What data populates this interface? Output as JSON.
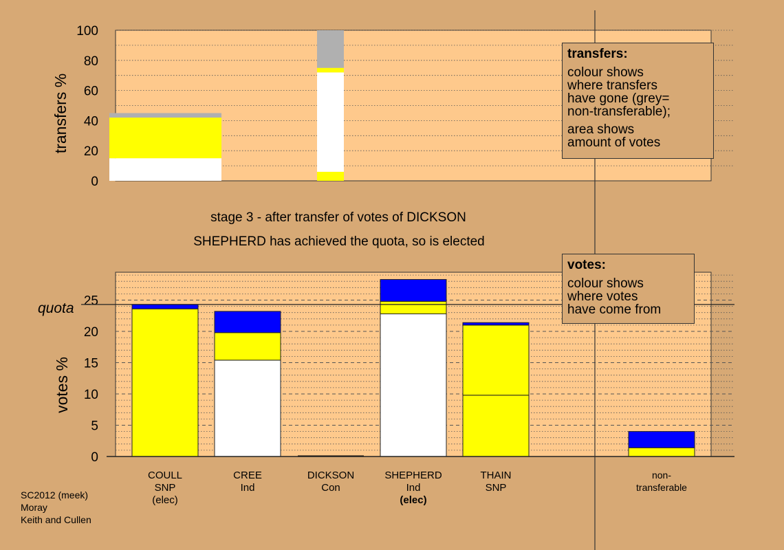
{
  "colors": {
    "background": "#d7a975",
    "plot_area": "#fec98c",
    "own_votes": "#ffffff",
    "snp": "#ffff00",
    "con": "#0000ff",
    "non_transferable": "#b0b0b0"
  },
  "captions": {
    "stage": "stage 3 - after transfer of votes of DICKSON",
    "result": "SHEPHERD has achieved the quota, so is elected"
  },
  "legend_transfers": {
    "title": "transfers:",
    "lines1": [
      "colour shows",
      "where transfers",
      "have gone (grey=",
      "non-transferable);"
    ],
    "lines2": [
      "area shows",
      "amount of votes"
    ]
  },
  "legend_votes": {
    "title": "votes:",
    "lines": [
      "colour shows",
      "where votes",
      "have come from"
    ]
  },
  "footer": [
    "SC2012 (meek)",
    "Moray",
    "Keith and Cullen"
  ],
  "chart_data": [
    {
      "type": "bar",
      "stacked": true,
      "title": "",
      "ylabel": "transfers %",
      "ylim": [
        0,
        100
      ],
      "yticks": [
        0,
        20,
        40,
        60,
        80,
        100
      ],
      "grid": "dotted",
      "categories": [
        "COULL",
        "DICKSON"
      ],
      "bars": [
        {
          "category": "COULL",
          "segments": [
            {
              "color": "#ffffff",
              "value": 15
            },
            {
              "color": "#ffff00",
              "value": 27
            },
            {
              "color": "#b0b0b0",
              "value": 3
            }
          ]
        },
        {
          "category": "DICKSON",
          "segments": [
            {
              "color": "#ffff00",
              "value": 6
            },
            {
              "color": "#ffffff",
              "value": 66
            },
            {
              "color": "#ffff00",
              "value": 3
            },
            {
              "color": "#b0b0b0",
              "value": 25
            }
          ]
        }
      ]
    },
    {
      "type": "bar",
      "stacked": true,
      "title": "",
      "ylabel": "votes %",
      "ylim": [
        0,
        30
      ],
      "yticks": [
        0,
        5,
        10,
        15,
        20,
        25
      ],
      "quota_label": "quota",
      "quota": 24.3,
      "grid": "dotted minor, dashed major",
      "candidates": [
        {
          "name": "COULL",
          "party": "SNP",
          "status": "(elec)",
          "segments": [
            {
              "color": "#ffff00",
              "value": 23.6
            },
            {
              "color": "#0000ff",
              "value": 0.7
            }
          ]
        },
        {
          "name": "CREE",
          "party": "Ind",
          "status": "",
          "segments": [
            {
              "color": "#ffffff",
              "value": 15.4
            },
            {
              "color": "#ffff00",
              "value": 4.4
            },
            {
              "color": "#0000ff",
              "value": 3.4
            }
          ]
        },
        {
          "name": "DICKSON",
          "party": "Con",
          "status": "",
          "segments": [
            {
              "color": "#0000ff",
              "value": 0
            }
          ]
        },
        {
          "name": "SHEPHERD",
          "party": "Ind",
          "status": "(elec)",
          "segments": [
            {
              "color": "#ffffff",
              "value": 22.8
            },
            {
              "color": "#ffff00",
              "value": 2.0
            },
            {
              "color": "#0000ff",
              "value": 3.5
            }
          ]
        },
        {
          "name": "THAIN",
          "party": "SNP",
          "status": "",
          "segments": [
            {
              "color": "#ffff00",
              "value": 9.8
            },
            {
              "color": "#ffff00",
              "value": 11.2
            },
            {
              "color": "#0000ff",
              "value": 0.4
            }
          ]
        },
        {
          "name": "non-",
          "party": "transferable",
          "status": "",
          "segments": [
            {
              "color": "#ffff00",
              "value": 1.4
            },
            {
              "color": "#0000ff",
              "value": 2.6
            }
          ]
        }
      ]
    }
  ]
}
